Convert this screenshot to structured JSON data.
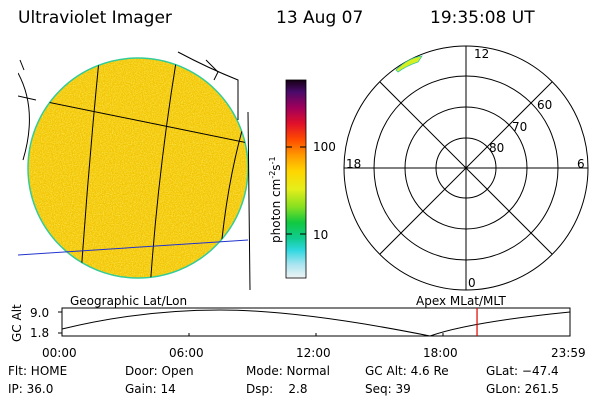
{
  "header": {
    "instrument": "Ultraviolet Imager",
    "date": "13 Aug 07",
    "time": "19:35:08 UT"
  },
  "imager": {
    "caption": "Geographic Lat/Lon",
    "fill_color": "#f2c400",
    "limb_color": "#33cc99"
  },
  "colorbar": {
    "unit_label": "photon cm",
    "unit_exp1": "-2",
    "unit_mid": "s",
    "unit_exp2": "-1",
    "tick_100": "100",
    "tick_10": "10"
  },
  "polar": {
    "caption": "Apex MLat/MLT",
    "mlt_12": "12",
    "mlt_18": "18",
    "mlt_6": "6",
    "mlt_0": "0",
    "lat_60": "60",
    "lat_70": "70",
    "lat_80": "80"
  },
  "orbit": {
    "ylabel": "GC Alt",
    "ymax": "9.0",
    "ymin": "1.8",
    "times": [
      "00:00",
      "06:00",
      "12:00",
      "18:00",
      "23:59"
    ],
    "current_fraction": 0.817,
    "marker_color": "#dd0000"
  },
  "status": {
    "flt": "Flt: HOME",
    "ip": "IP: 36.0",
    "door": "Door: Open",
    "gain": "Gain: 14",
    "mode": "Mode: Normal",
    "dsp": "Dsp:    2.8",
    "gcalt": "GC Alt: 4.6 Re",
    "seq": "Seq: 39",
    "glat": "GLat: −47.4",
    "glon": "GLon: 261.5"
  }
}
